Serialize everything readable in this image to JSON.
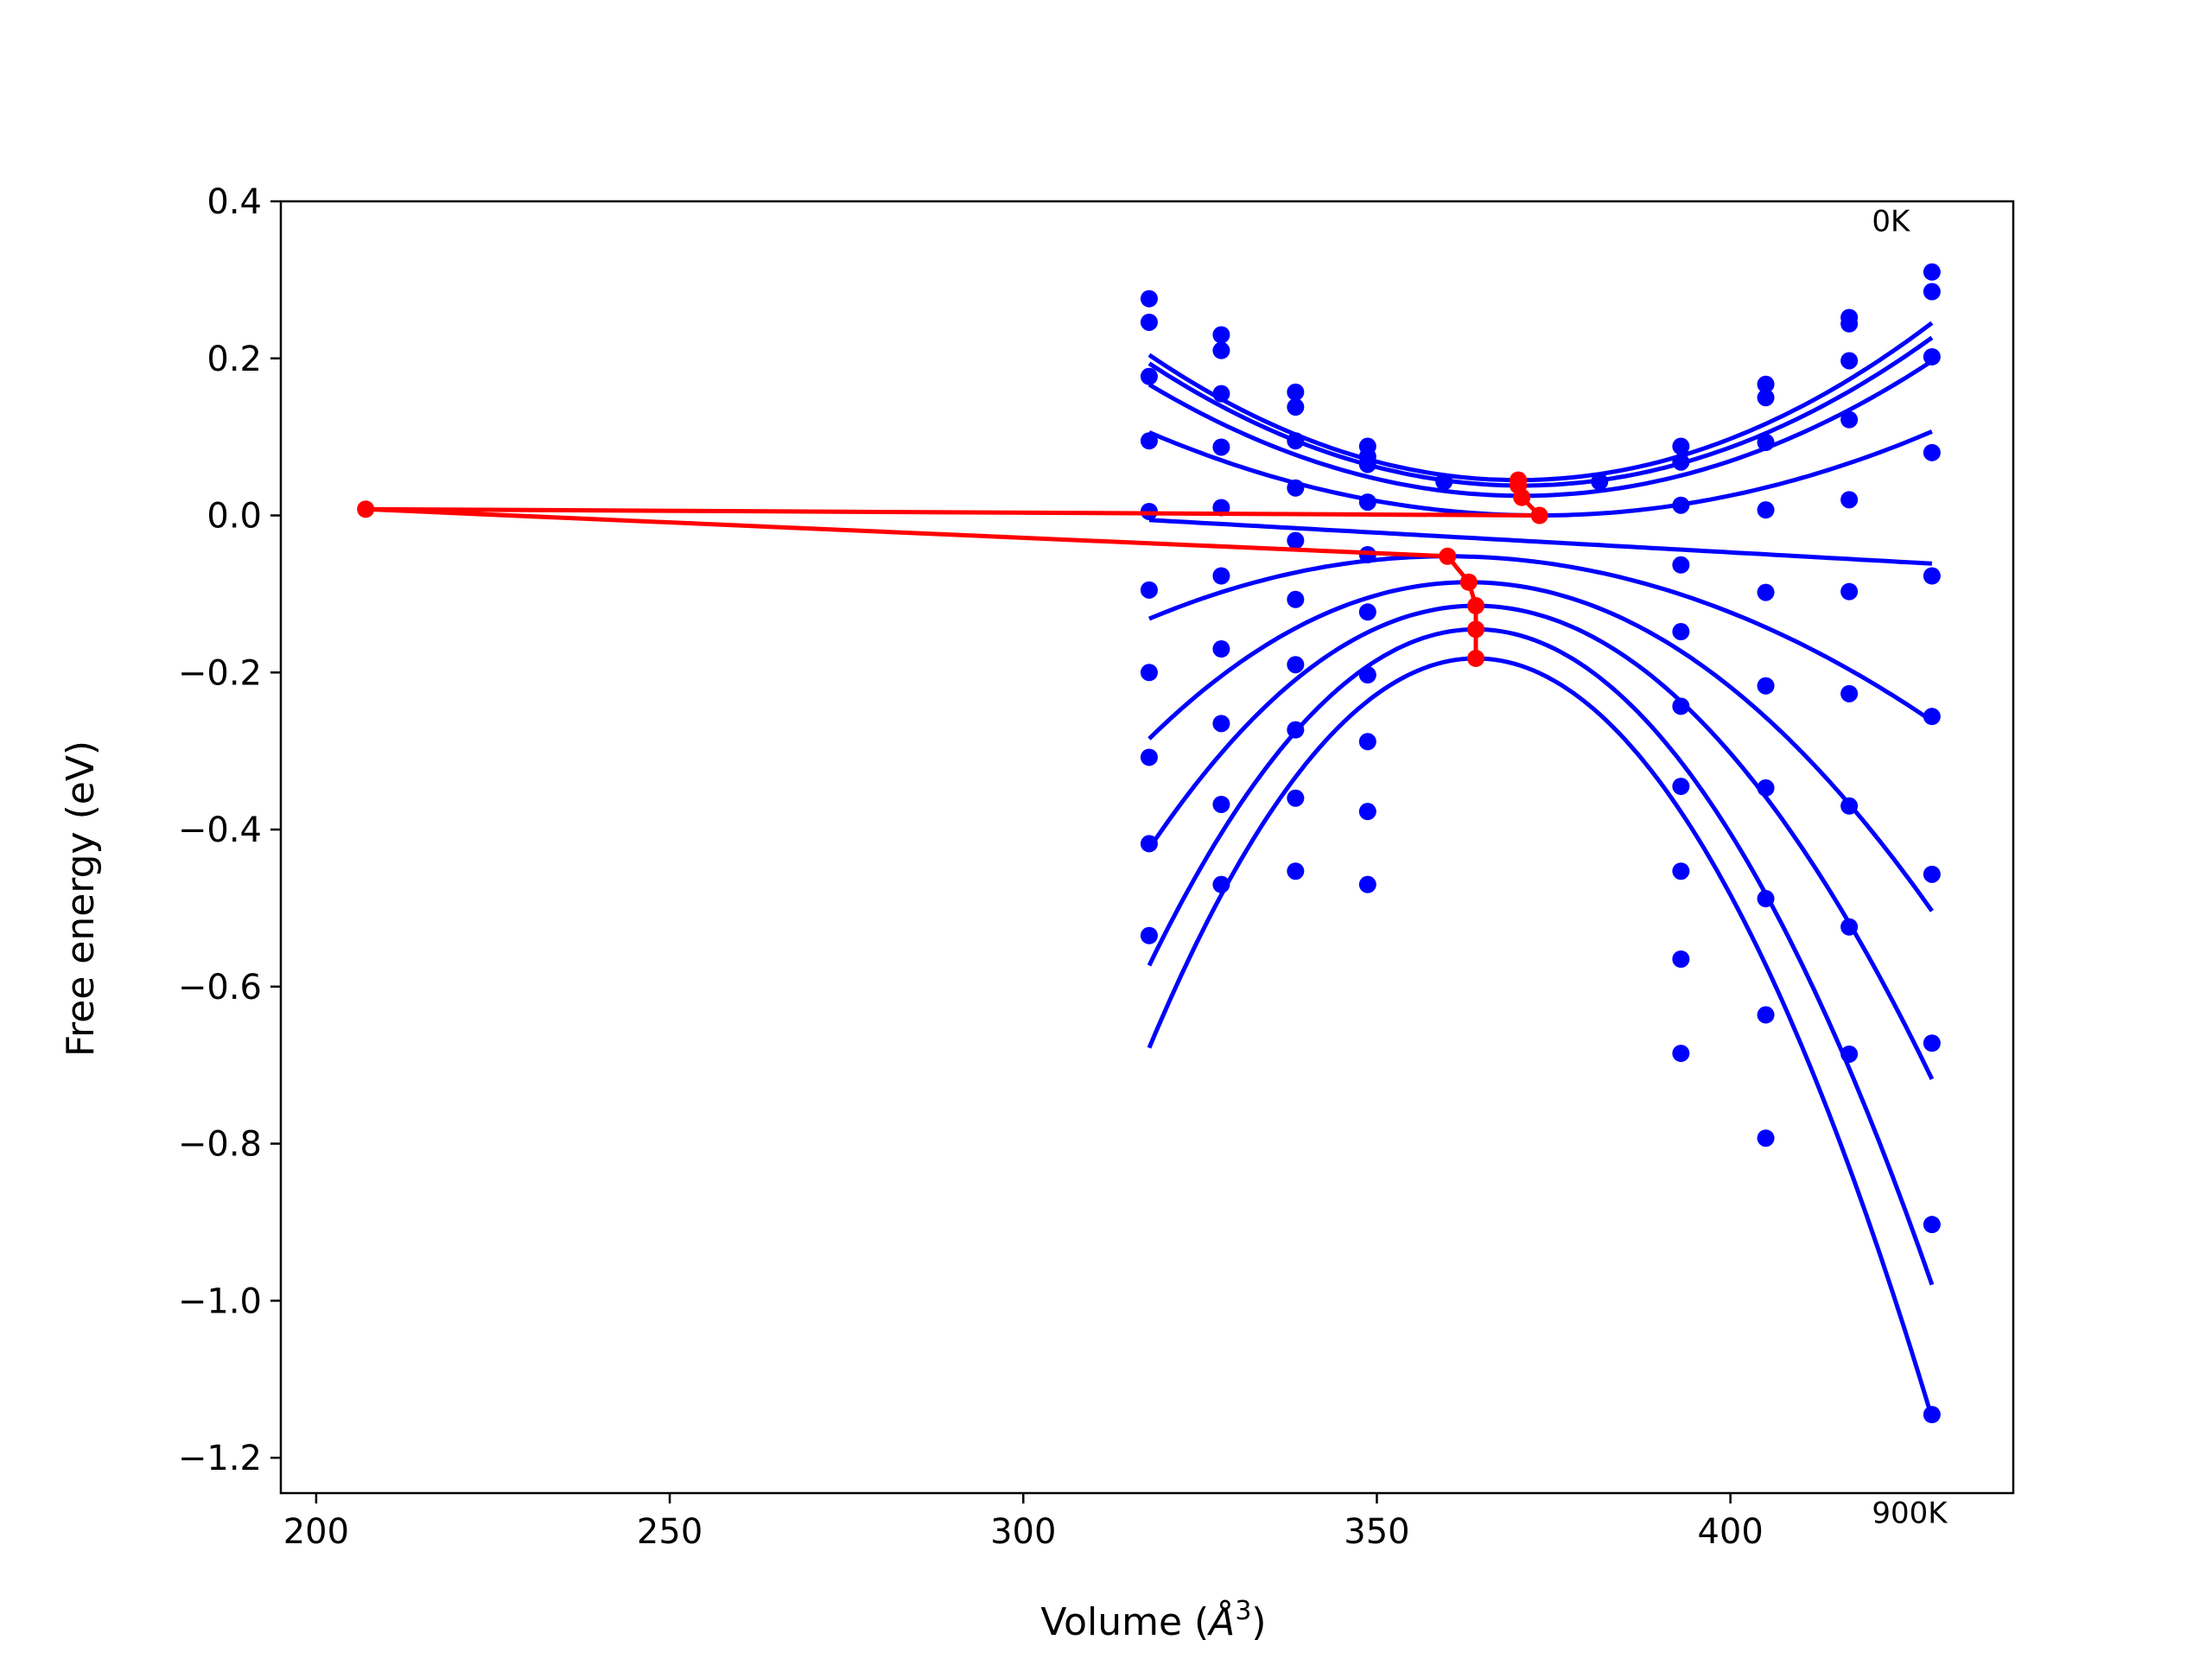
{
  "chart_data": {
    "type": "scatter",
    "title": "",
    "xlabel": "Volume (",
    "xlabel_symbol": "Å",
    "xlabel_exp": "3",
    "xlabel_close": ")",
    "ylabel": "Free energy (eV)",
    "xlim": [
      195,
      440
    ],
    "ylim": [
      -1.245,
      0.4
    ],
    "xticks": [
      200,
      250,
      300,
      350,
      400
    ],
    "xtick_labels": [
      "200",
      "250",
      "300",
      "350",
      "400"
    ],
    "yticks": [
      0.4,
      0.2,
      0.0,
      -0.2,
      -0.4,
      -0.6,
      -0.8,
      -1.0,
      -1.2
    ],
    "ytick_labels": [
      "0.4",
      "0.2",
      "0.0",
      "−0.2",
      "−0.4",
      "−0.6",
      "−0.8",
      "−1.0",
      "−1.2"
    ],
    "annotations": [
      {
        "text": "0K",
        "x": 420,
        "y": 0.375
      },
      {
        "text": "900K",
        "x": 420,
        "y": -1.27
      }
    ],
    "colors": {
      "fit": "#0000ff",
      "points": "#0000ff",
      "minima": "#ff0000"
    },
    "fit_range": [
      317.8,
      428.5
    ],
    "fit_curves": [
      {
        "a": 5.85e-05,
        "v0": 370.0,
        "e0": 0.045
      },
      {
        "a": 5.6e-05,
        "v0": 370.5,
        "e0": 0.038
      },
      {
        "a": 5.1e-05,
        "v0": 370.5,
        "e0": 0.025
      },
      {
        "a": 3.47e-05,
        "v0": 373.0,
        "e0": 0.0
      },
      {
        "a": 0.0,
        "v0": 373.0,
        "e0": -0.0335,
        "slope": -0.000502
      },
      {
        "a": -4.47e-05,
        "v0": 360.0,
        "e0": -0.052
      },
      {
        "a": -9.76e-05,
        "v0": 363.0,
        "e0": -0.085
      },
      {
        "a": -0.0001449,
        "v0": 364.0,
        "e0": -0.115
      },
      {
        "a": -0.0002006,
        "v0": 364.0,
        "e0": -0.145
      },
      {
        "a": -0.0002324,
        "v0": 364.0,
        "e0": -0.182
      }
    ],
    "data_points": {
      "x": [
        317.8,
        328.0,
        338.5,
        348.7,
        393.0,
        405.0,
        416.8,
        428.5
      ],
      "series": [
        [
          0.276,
          0.23,
          0.157,
          0.088,
          0.088,
          0.167,
          0.252,
          0.31
        ],
        [
          0.246,
          0.21,
          0.138,
          0.075,
          0.068,
          0.15,
          0.244,
          0.285
        ],
        [
          0.177,
          0.155,
          0.095,
          0.065,
          0.013,
          0.093,
          0.197,
          0.202
        ],
        [
          0.095,
          0.087,
          0.035,
          0.017,
          -0.063,
          0.007,
          0.122,
          0.08
        ],
        [
          0.005,
          0.01,
          -0.032,
          -0.05,
          -0.148,
          -0.098,
          0.02,
          -0.077
        ],
        [
          -0.095,
          -0.077,
          -0.107,
          -0.123,
          -0.243,
          -0.217,
          -0.097,
          -0.256
        ],
        [
          -0.2,
          -0.17,
          -0.19,
          -0.203,
          -0.345,
          -0.347,
          -0.227,
          -0.457
        ],
        [
          -0.308,
          -0.265,
          -0.273,
          -0.288,
          -0.453,
          -0.488,
          -0.37,
          -0.672
        ],
        [
          -0.418,
          -0.368,
          -0.36,
          -0.377,
          -0.565,
          -0.636,
          -0.524,
          -0.903
        ],
        [
          -0.535,
          -0.47,
          -0.453,
          -0.47,
          -0.685,
          -0.793,
          -0.686,
          -1.145
        ]
      ],
      "extra": [
        {
          "x": 359.5,
          "y": 0.043
        },
        {
          "x": 381.5,
          "y": 0.043
        }
      ]
    },
    "minima_path": [
      {
        "x": 370.0,
        "y": 0.045
      },
      {
        "x": 370.0,
        "y": 0.038
      },
      {
        "x": 370.5,
        "y": 0.023
      },
      {
        "x": 373.0,
        "y": 0.0
      },
      {
        "x": 207.0,
        "y": 0.008
      },
      {
        "x": 360.0,
        "y": -0.052
      },
      {
        "x": 363.0,
        "y": -0.085
      },
      {
        "x": 364.0,
        "y": -0.115
      },
      {
        "x": 364.0,
        "y": -0.145
      },
      {
        "x": 364.0,
        "y": -0.182
      }
    ]
  }
}
